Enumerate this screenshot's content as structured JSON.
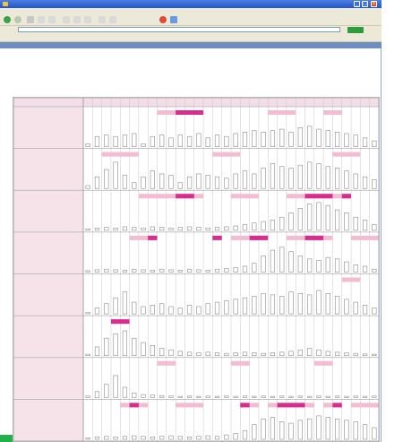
{
  "window": {
    "title": "",
    "menu": [],
    "address": "",
    "go_label": "",
    "links": [],
    "tabs": [],
    "active_tab": 5
  },
  "info": {
    "lines": []
  },
  "colors": {
    "pink_cell": "#f3bcd0",
    "magenta": "#d82c8f",
    "bar": "#8a8a8a",
    "row_label_bg": "#f6e3ea",
    "grid": "#c8c8c8",
    "titlebar": "#2f62d6",
    "green": "#21b14b"
  },
  "chart_data": {
    "type": "bar",
    "columns": 32,
    "rows": [
      {
        "name": "",
        "heights": [
          0.1,
          0.35,
          0.4,
          0.35,
          0.4,
          0.45,
          0.1,
          0.35,
          0.4,
          0.3,
          0.4,
          0.35,
          0.45,
          0.3,
          0.4,
          0.35,
          0.45,
          0.5,
          0.55,
          0.5,
          0.55,
          0.6,
          0.5,
          0.65,
          0.7,
          0.6,
          0.55,
          0.5,
          0.45,
          0.4,
          0.3,
          0.2
        ],
        "pink": [
          [
            8,
            13
          ],
          [
            20,
            23
          ],
          [
            26,
            28
          ]
        ],
        "magenta": [
          [
            10,
            13
          ]
        ]
      },
      {
        "name": "",
        "heights": [
          0.1,
          0.4,
          0.65,
          0.9,
          0.45,
          0.2,
          0.4,
          0.6,
          0.5,
          0.45,
          0.2,
          0.4,
          0.5,
          0.45,
          0.4,
          0.35,
          0.5,
          0.6,
          0.5,
          0.7,
          0.85,
          0.75,
          0.7,
          0.8,
          0.9,
          0.85,
          0.75,
          0.7,
          0.6,
          0.5,
          0.4,
          0.3
        ],
        "pink": [
          [
            2,
            6
          ],
          [
            14,
            17
          ],
          [
            27,
            30
          ]
        ],
        "magenta": []
      },
      {
        "name": "",
        "heights": [
          0.05,
          0.08,
          0.1,
          0.08,
          0.12,
          0.1,
          0.08,
          0.12,
          0.1,
          0.08,
          0.1,
          0.12,
          0.1,
          0.08,
          0.1,
          0.12,
          0.15,
          0.2,
          0.25,
          0.3,
          0.35,
          0.45,
          0.6,
          0.75,
          0.9,
          0.95,
          0.85,
          0.7,
          0.6,
          0.45,
          0.35,
          0.2
        ],
        "pink": [
          [
            6,
            13
          ],
          [
            16,
            19
          ],
          [
            22,
            29
          ]
        ],
        "magenta": [
          [
            10,
            12
          ],
          [
            24,
            27
          ],
          [
            28,
            29
          ]
        ]
      },
      {
        "name": "",
        "heights": [
          0.05,
          0.08,
          0.1,
          0.08,
          0.06,
          0.1,
          0.08,
          0.06,
          0.1,
          0.08,
          0.06,
          0.1,
          0.08,
          0.06,
          0.1,
          0.12,
          0.15,
          0.2,
          0.3,
          0.55,
          0.75,
          0.85,
          0.7,
          0.55,
          0.45,
          0.4,
          0.5,
          0.45,
          0.35,
          0.25,
          0.2,
          0.1
        ],
        "pink": [
          [
            5,
            8
          ],
          [
            16,
            20
          ],
          [
            22,
            27
          ],
          [
            29,
            32
          ]
        ],
        "magenta": [
          [
            7,
            8
          ],
          [
            14,
            15
          ],
          [
            18,
            20
          ],
          [
            24,
            26
          ]
        ]
      },
      {
        "name": "",
        "heights": [
          0.05,
          0.2,
          0.35,
          0.55,
          0.75,
          0.4,
          0.25,
          0.3,
          0.35,
          0.25,
          0.2,
          0.3,
          0.25,
          0.35,
          0.4,
          0.45,
          0.5,
          0.55,
          0.6,
          0.7,
          0.65,
          0.6,
          0.75,
          0.7,
          0.65,
          0.8,
          0.7,
          0.6,
          0.5,
          0.4,
          0.3,
          0.2
        ],
        "pink": [
          [
            28,
            30
          ]
        ],
        "magenta": []
      },
      {
        "name": "",
        "heights": [
          0.05,
          0.3,
          0.6,
          0.75,
          0.85,
          0.6,
          0.45,
          0.35,
          0.25,
          0.2,
          0.15,
          0.12,
          0.1,
          0.12,
          0.1,
          0.08,
          0.1,
          0.12,
          0.1,
          0.08,
          0.1,
          0.12,
          0.15,
          0.2,
          0.25,
          0.2,
          0.15,
          0.12,
          0.1,
          0.08,
          0.06,
          0.05
        ],
        "pink": [
          [
            3,
            5
          ]
        ],
        "magenta": [
          [
            3,
            5
          ]
        ]
      },
      {
        "name": "",
        "heights": [
          0.05,
          0.2,
          0.45,
          0.75,
          0.35,
          0.15,
          0.1,
          0.08,
          0.06,
          0.05,
          0.04,
          0.05,
          0.04,
          0.05,
          0.04,
          0.05,
          0.04,
          0.05,
          0.04,
          0.05,
          0.04,
          0.05,
          0.04,
          0.05,
          0.04,
          0.05,
          0.04,
          0.05,
          0.04,
          0.05,
          0.04,
          0.05
        ],
        "pink": [
          [
            8,
            10
          ],
          [
            16,
            18
          ],
          [
            25,
            27
          ]
        ],
        "magenta": []
      },
      {
        "name": "",
        "heights": [
          0.05,
          0.08,
          0.1,
          0.08,
          0.1,
          0.12,
          0.1,
          0.08,
          0.1,
          0.12,
          0.1,
          0.08,
          0.1,
          0.12,
          0.1,
          0.15,
          0.2,
          0.3,
          0.5,
          0.7,
          0.75,
          0.6,
          0.55,
          0.65,
          0.7,
          0.8,
          0.75,
          0.7,
          0.65,
          0.6,
          0.5,
          0.4
        ],
        "pink": [
          [
            4,
            7
          ],
          [
            10,
            13
          ],
          [
            17,
            19
          ],
          [
            20,
            25
          ],
          [
            26,
            28
          ],
          [
            29,
            32
          ]
        ],
        "magenta": [
          [
            5,
            6
          ],
          [
            17,
            18
          ],
          [
            21,
            24
          ],
          [
            27,
            28
          ]
        ]
      }
    ]
  }
}
